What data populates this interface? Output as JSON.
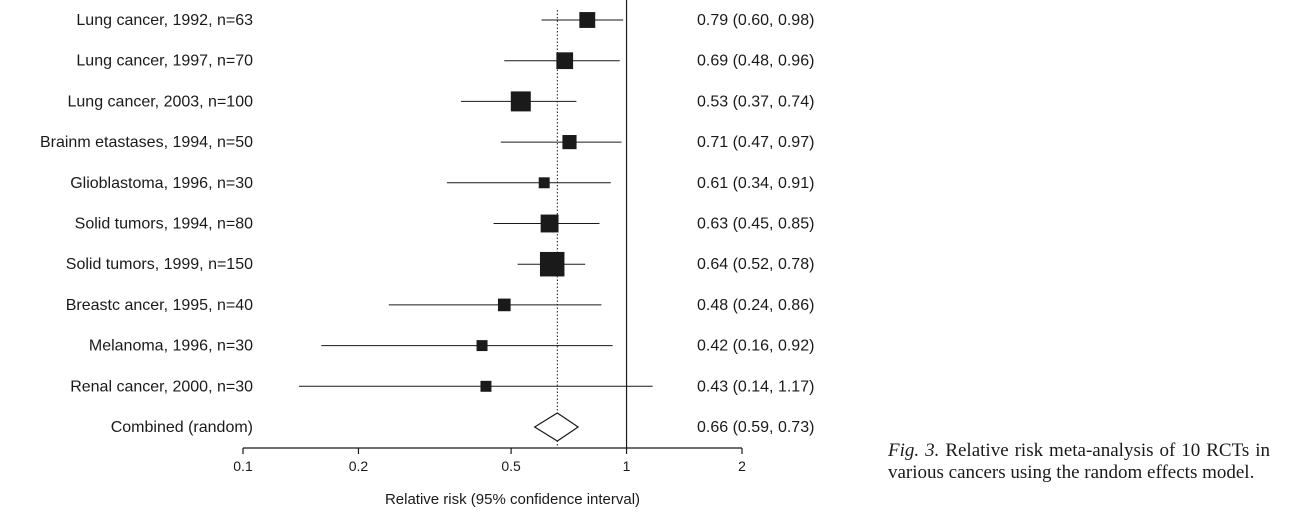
{
  "chart_data": {
    "type": "forest",
    "xscale": "log",
    "xlim": [
      0.1,
      2
    ],
    "xticks": [
      0.1,
      0.2,
      0.5,
      1,
      2
    ],
    "xtick_labels": [
      "0.1",
      "0.2",
      "0.5",
      "1",
      "2"
    ],
    "xlabel": "Relative risk (95% confidence interval)",
    "reference_line": 1,
    "pooled_line": 0.66,
    "studies": [
      {
        "label": "Lung cancer, 1992, n=63",
        "rr": 0.79,
        "lo": 0.6,
        "hi": 0.98,
        "n": 63,
        "ci_text": "0.79 (0.60, 0.98)"
      },
      {
        "label": "Lung cancer, 1997, n=70",
        "rr": 0.69,
        "lo": 0.48,
        "hi": 0.96,
        "n": 70,
        "ci_text": "0.69 (0.48, 0.96)"
      },
      {
        "label": "Lung cancer, 2003, n=100",
        "rr": 0.53,
        "lo": 0.37,
        "hi": 0.74,
        "n": 100,
        "ci_text": "0.53 (0.37, 0.74)"
      },
      {
        "label": "Brainm etastases, 1994, n=50",
        "rr": 0.71,
        "lo": 0.47,
        "hi": 0.97,
        "n": 50,
        "ci_text": "0.71 (0.47, 0.97)"
      },
      {
        "label": "Glioblastoma, 1996, n=30",
        "rr": 0.61,
        "lo": 0.34,
        "hi": 0.91,
        "n": 30,
        "ci_text": "0.61 (0.34, 0.91)"
      },
      {
        "label": "Solid tumors, 1994, n=80",
        "rr": 0.63,
        "lo": 0.45,
        "hi": 0.85,
        "n": 80,
        "ci_text": "0.63 (0.45, 0.85)"
      },
      {
        "label": "Solid tumors, 1999, n=150",
        "rr": 0.64,
        "lo": 0.52,
        "hi": 0.78,
        "n": 150,
        "ci_text": "0.64 (0.52, 0.78)"
      },
      {
        "label": "Breastc ancer, 1995, n=40",
        "rr": 0.48,
        "lo": 0.24,
        "hi": 0.86,
        "n": 40,
        "ci_text": "0.48 (0.24, 0.86)"
      },
      {
        "label": "Melanoma, 1996, n=30",
        "rr": 0.42,
        "lo": 0.16,
        "hi": 0.92,
        "n": 30,
        "ci_text": "0.42 (0.16, 0.92)"
      },
      {
        "label": "Renal cancer, 2000, n=30",
        "rr": 0.43,
        "lo": 0.14,
        "hi": 1.17,
        "n": 30,
        "ci_text": "0.43 (0.14, 1.17)"
      }
    ],
    "combined": {
      "label": "Combined (random)",
      "rr": 0.66,
      "lo": 0.59,
      "hi": 0.73,
      "ci_text": "0.66 (0.59, 0.73)"
    }
  },
  "caption": {
    "fig_label": "Fig",
    "fig_number": ". 3.",
    "text": " Relative risk meta-analysis of 10 RCTs in various cancers using the random effects model."
  }
}
